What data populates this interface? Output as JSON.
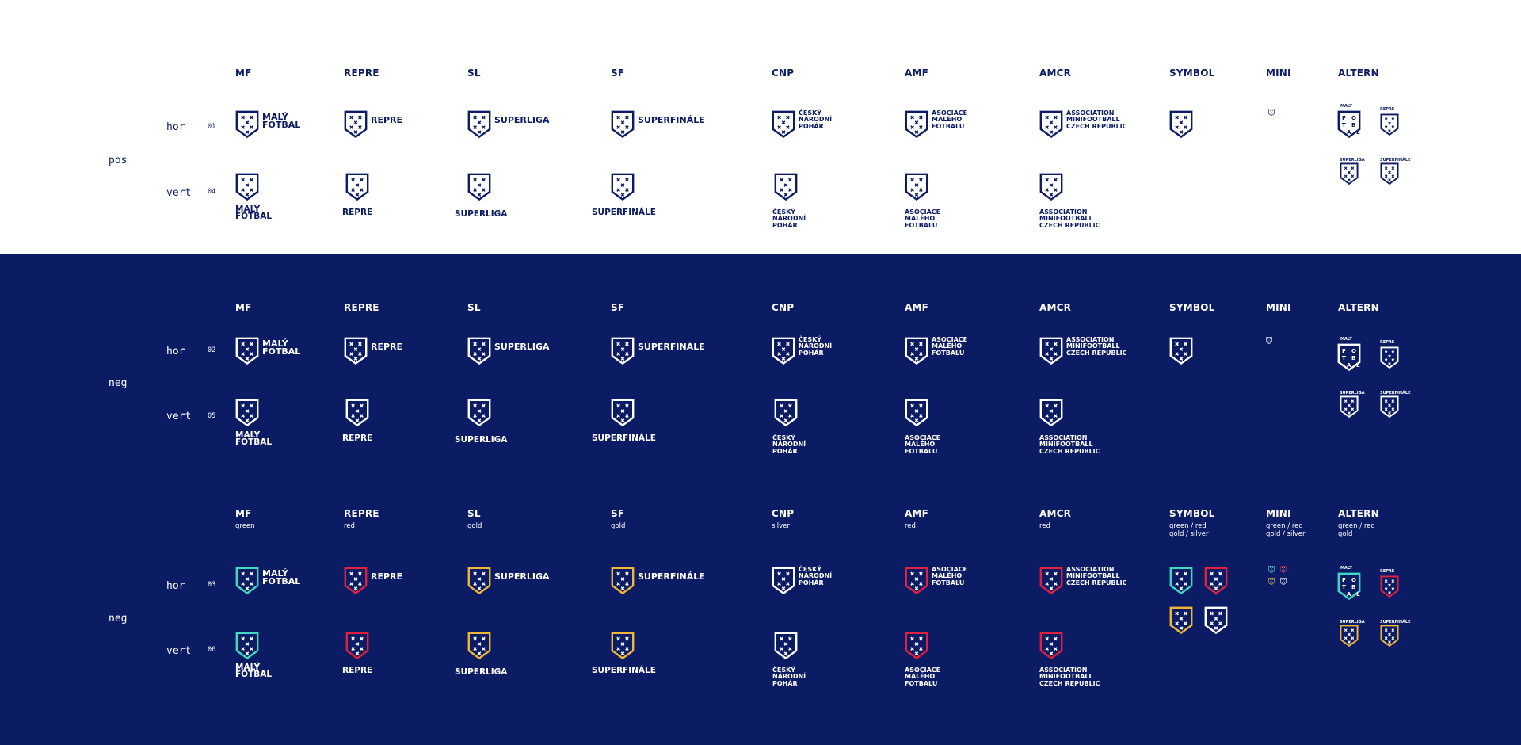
{
  "columns": [
    "MF",
    "REPRE",
    "SL",
    "SF",
    "CNP",
    "AMF",
    "AMCR",
    "SYMBOL",
    "MINI",
    "ALTERN"
  ],
  "row_groups": [
    {
      "state": "pos",
      "rows": [
        {
          "orient": "hor",
          "num": "01"
        },
        {
          "orient": "vert",
          "num": "04"
        }
      ]
    },
    {
      "state": "neg",
      "rows": [
        {
          "orient": "hor",
          "num": "02"
        },
        {
          "orient": "vert",
          "num": "05"
        }
      ]
    },
    {
      "state": "neg",
      "rows": [
        {
          "orient": "hor",
          "num": "03"
        },
        {
          "orient": "vert",
          "num": "06"
        }
      ]
    }
  ],
  "color_notes": {
    "mf": "green",
    "repre": "red",
    "sl": "gold",
    "sf": "gold",
    "cnp": "silver",
    "amf": "red",
    "amcr": "red",
    "symbol": "green / red\ngold / silver",
    "mini": "green / red\ngold / silver",
    "altern": "green / red\ngold"
  },
  "wordmarks": {
    "mf_hor": "MALÝ\nFOTBAL",
    "mf_vert": "MALÝ\nFOTBAL",
    "repre": "REPRE",
    "sl": "SUPERLIGA",
    "sf": "SUPERFINÁLE",
    "cnp": "ČESKÝ\nNÁRODNÍ\nPOHÁR",
    "amf_hor": "ASOCIACE\nMALÉHO\nFOTBALU",
    "amf_vert": "ASOCIACE\nMALÉHO\nFOTBALU",
    "amcr": "ASSOCIATION\nMINIFOOTBALL\nCZECH REPUBLIC",
    "altern_mf": "MALÝ",
    "altern_mf_letters": [
      "F",
      "O",
      "T",
      "B",
      "A",
      "L"
    ],
    "altern_repre": "REPRE",
    "altern_sl": "SUPERLIGA",
    "altern_sf": "SUPERFINÁLE"
  },
  "colors": {
    "navy": "#0c1c64",
    "white": "#ffffff",
    "green": "#3ed8c3",
    "red": "#e0203c",
    "gold": "#f2b636",
    "silver": "#ffffff"
  },
  "icons": [
    "shield-icon"
  ]
}
